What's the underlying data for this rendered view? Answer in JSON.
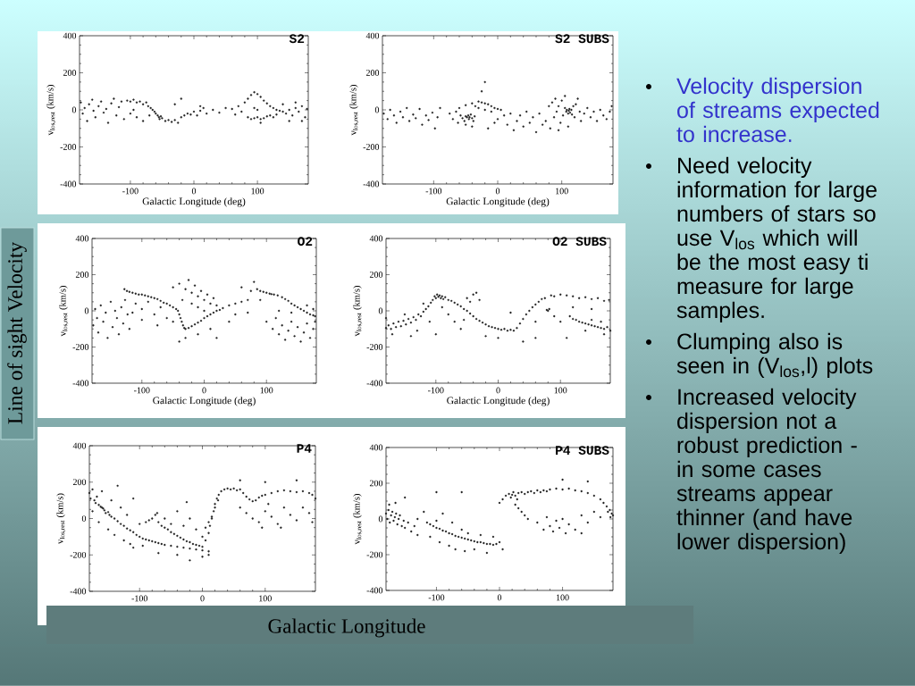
{
  "chart_data": [
    {
      "type": "scatter",
      "title": "S2",
      "xlabel": "Galactic Longitude (deg)",
      "ylabel": "v$_{los,rest}$ (km/s)",
      "color": "#222222",
      "marker": "circle",
      "xlim": [
        -180,
        180
      ],
      "ylim": [
        -400,
        400
      ],
      "xticks": [
        -100,
        0,
        100
      ],
      "yticks": [
        -400,
        -200,
        0,
        200,
        400
      ],
      "x": [
        -178,
        -175,
        -172,
        -168,
        -165,
        -160,
        -158,
        -155,
        -150,
        -146,
        -142,
        -138,
        -135,
        -130,
        -126,
        -122,
        -118,
        -114,
        -110,
        -105,
        -100,
        -95,
        -90,
        -85,
        -80,
        -75,
        -72,
        -68,
        -65,
        -62,
        -60,
        -57,
        -55,
        -54,
        -52,
        -50,
        -100,
        -90,
        -80,
        -70,
        -95,
        -45,
        -40,
        -35,
        -30,
        -25,
        -20,
        -15,
        -10,
        -5,
        0,
        5,
        10,
        15,
        20,
        30,
        40,
        50,
        60,
        65,
        70,
        75,
        -30,
        -20,
        10,
        80,
        85,
        90,
        95,
        100,
        105,
        110,
        115,
        120,
        125,
        130,
        135,
        85,
        90,
        95,
        100,
        105,
        110,
        115,
        120,
        125,
        130,
        140,
        145,
        150,
        155,
        160,
        165,
        170,
        175,
        178,
        95,
        100,
        140,
        160,
        150,
        170,
        105
      ],
      "values": [
        40,
        -20,
        10,
        -60,
        30,
        55,
        -5,
        -40,
        20,
        45,
        -15,
        5,
        -70,
        35,
        60,
        -30,
        15,
        45,
        -50,
        50,
        45,
        55,
        40,
        45,
        30,
        40,
        20,
        10,
        0,
        -10,
        -20,
        -30,
        -40,
        -50,
        -35,
        -45,
        -20,
        -40,
        -60,
        -30,
        0,
        -60,
        -55,
        -65,
        -55,
        -70,
        -40,
        -30,
        -20,
        -25,
        -10,
        -30,
        -5,
        10,
        -20,
        0,
        -15,
        10,
        5,
        -25,
        20,
        -10,
        30,
        60,
        20,
        40,
        60,
        80,
        95,
        85,
        70,
        50,
        35,
        20,
        10,
        0,
        -5,
        -40,
        -50,
        -45,
        -40,
        -50,
        -45,
        -35,
        -30,
        -40,
        -25,
        -10,
        -20,
        0,
        -30,
        10,
        -10,
        20,
        -40,
        5,
        10,
        0,
        30,
        40,
        -60,
        -60,
        -70
      ]
    },
    {
      "type": "scatter",
      "title": "S2 SUBS",
      "xlabel": "Galactic Longitude (deg)",
      "ylabel": "v$_{los,rest}$ (km/s)",
      "color": "#222222",
      "marker": "circle",
      "xlim": [
        -180,
        180
      ],
      "ylim": [
        -400,
        400
      ],
      "xticks": [
        -100,
        0,
        100
      ],
      "yticks": [
        -400,
        -200,
        0,
        200,
        400
      ],
      "x": [
        -178,
        -172,
        -168,
        -162,
        -158,
        -152,
        -148,
        -142,
        -138,
        -132,
        -128,
        -122,
        -118,
        -112,
        -108,
        -102,
        -98,
        -94,
        -90,
        -75,
        -70,
        -65,
        -62,
        -58,
        -55,
        -52,
        -50,
        -48,
        -46,
        -45,
        -44,
        -42,
        -40,
        -38,
        -36,
        -50,
        -40,
        -60,
        -50,
        -40,
        -30,
        -25,
        -20,
        -15,
        -10,
        -5,
        0,
        5,
        -35,
        -30,
        -20,
        -10,
        0,
        10,
        15,
        20,
        25,
        30,
        35,
        40,
        45,
        50,
        55,
        60,
        65,
        70,
        -20,
        -25,
        -15,
        -5,
        75,
        80,
        82,
        85,
        88,
        90,
        92,
        95,
        98,
        100,
        102,
        105,
        107,
        108,
        110,
        111,
        112,
        113,
        115,
        116,
        118,
        120,
        122,
        125,
        128,
        130,
        95,
        110,
        105,
        135,
        140,
        145,
        150,
        155,
        160,
        165,
        170,
        175,
        178
      ],
      "values": [
        -20,
        -50,
        0,
        -30,
        -70,
        -10,
        -40,
        10,
        -60,
        -25,
        -45,
        5,
        -80,
        -30,
        -55,
        -15,
        -100,
        -40,
        10,
        -20,
        -50,
        -10,
        -70,
        -30,
        -45,
        -60,
        -35,
        -40,
        -30,
        -50,
        -40,
        -25,
        -45,
        -60,
        -35,
        -80,
        -90,
        10,
        25,
        35,
        45,
        40,
        35,
        30,
        20,
        10,
        5,
        0,
        20,
        10,
        0,
        -10,
        -50,
        -30,
        -80,
        -20,
        -110,
        -60,
        -30,
        -90,
        -10,
        -70,
        -40,
        -120,
        -20,
        -80,
        150,
        100,
        -100,
        -70,
        -60,
        20,
        -100,
        40,
        -40,
        60,
        -10,
        20,
        -70,
        50,
        -30,
        10,
        -10,
        0,
        -20,
        -5,
        5,
        -15,
        0,
        -25,
        20,
        -40,
        30,
        60,
        -10,
        -60,
        -110,
        -90,
        75,
        -20,
        10,
        -40,
        -10,
        -60,
        0,
        -30,
        -50,
        -10,
        20
      ]
    },
    {
      "type": "scatter",
      "title": "O2",
      "xlabel": "Galactic Longitude (deg)",
      "ylabel": "v$_{los,rest}$ (km/s)",
      "color": "#222222",
      "marker": "circle",
      "xlim": [
        -180,
        180
      ],
      "ylim": [
        -400,
        400
      ],
      "xticks": [
        -100,
        0,
        100
      ],
      "yticks": [
        -400,
        -200,
        0,
        200,
        400
      ],
      "x": [
        -178,
        -175,
        -172,
        -170,
        -166,
        -162,
        -158,
        -155,
        -150,
        -147,
        -143,
        -140,
        -137,
        -133,
        -130,
        -127,
        -123,
        -120,
        -128,
        -124,
        -120,
        -115,
        -110,
        -105,
        -100,
        -95,
        -90,
        -85,
        -80,
        -75,
        -70,
        -65,
        -60,
        -55,
        -50,
        -45,
        -42,
        -40,
        -38,
        -36,
        -34,
        -32,
        -30,
        -110,
        -100,
        -90,
        -80,
        -70,
        -60,
        -50,
        -75,
        -100,
        -115,
        -25,
        -20,
        -15,
        -10,
        -5,
        0,
        5,
        10,
        15,
        20,
        25,
        30,
        40,
        50,
        60,
        70,
        -50,
        -40,
        -30,
        -25,
        -20,
        -15,
        -10,
        -5,
        0,
        5,
        10,
        15,
        20,
        -35,
        -20,
        -10,
        0,
        -30,
        -10,
        -40,
        10,
        20,
        75,
        85,
        90,
        95,
        100,
        105,
        108,
        112,
        118,
        125,
        130,
        135,
        140,
        145,
        150,
        155,
        160,
        165,
        170,
        175,
        178,
        100,
        110,
        115,
        120,
        125,
        130,
        135,
        140,
        145,
        150,
        155,
        160,
        165,
        170,
        175,
        178,
        120,
        140,
        165,
        175,
        80,
        60,
        90,
        50,
        40,
        70
      ],
      "values": [
        -80,
        10,
        -40,
        -120,
        30,
        -60,
        -10,
        -150,
        50,
        -90,
        0,
        -40,
        -130,
        20,
        -70,
        60,
        -20,
        -100,
        120,
        110,
        105,
        100,
        95,
        90,
        90,
        85,
        80,
        75,
        70,
        65,
        55,
        45,
        40,
        30,
        20,
        10,
        0,
        -20,
        -40,
        -60,
        -80,
        -95,
        -100,
        40,
        10,
        50,
        -20,
        20,
        -40,
        -60,
        -80,
        -50,
        -10,
        -95,
        -85,
        -75,
        -65,
        -55,
        -40,
        -30,
        -20,
        -10,
        0,
        5,
        15,
        30,
        40,
        50,
        60,
        130,
        150,
        120,
        170,
        100,
        140,
        80,
        110,
        60,
        90,
        40,
        70,
        30,
        60,
        40,
        20,
        0,
        -150,
        -130,
        -170,
        -100,
        -150,
        110,
        120,
        110,
        105,
        100,
        95,
        92,
        90,
        85,
        75,
        65,
        55,
        40,
        30,
        20,
        10,
        0,
        -10,
        -20,
        -25,
        -30,
        -60,
        -100,
        -40,
        -130,
        -80,
        -160,
        -110,
        -60,
        -140,
        -90,
        -170,
        -120,
        -70,
        -150,
        -100,
        -60,
        0,
        -10,
        30,
        10,
        160,
        130,
        60,
        -20,
        -60,
        -10
      ]
    },
    {
      "type": "scatter",
      "title": "O2 SUBS",
      "xlabel": "Galactic Longitude (deg)",
      "ylabel": "v$_{los,rest}$ (km/s)",
      "color": "#222222",
      "marker": "circle",
      "xlim": [
        -180,
        180
      ],
      "ylim": [
        -400,
        400
      ],
      "xticks": [
        -100,
        0,
        100
      ],
      "yticks": [
        -400,
        -200,
        0,
        200,
        400
      ],
      "x": [
        -180,
        -176,
        -172,
        -168,
        -164,
        -160,
        -156,
        -152,
        -148,
        -144,
        -140,
        -136,
        -132,
        -128,
        -124,
        -120,
        -116,
        -112,
        -108,
        -105,
        -102,
        -100,
        -98,
        -96,
        -94,
        -92,
        -90,
        -88,
        -85,
        -80,
        -75,
        -70,
        -65,
        -60,
        -55,
        -50,
        -45,
        -40,
        -35,
        -30,
        -25,
        -20,
        -15,
        -10,
        -5,
        0,
        5,
        10,
        15,
        20,
        25,
        30,
        -170,
        -150,
        -130,
        -120,
        -110,
        -90,
        -80,
        -70,
        -60,
        -50,
        -40,
        -35,
        -30,
        -45,
        -55,
        -100,
        -20,
        0,
        -140,
        35,
        40,
        45,
        50,
        55,
        60,
        65,
        70,
        75,
        78,
        80,
        82,
        85,
        90,
        100,
        110,
        120,
        130,
        140,
        150,
        160,
        170,
        178,
        115,
        120,
        125,
        130,
        135,
        140,
        145,
        150,
        155,
        160,
        165,
        170,
        175,
        180,
        150,
        165,
        140,
        170,
        40,
        60,
        100,
        110,
        20,
        60,
        90,
        120,
        150,
        -180
      ],
      "values": [
        -95,
        -80,
        -100,
        -70,
        -90,
        -60,
        -85,
        -55,
        -75,
        -45,
        -65,
        -35,
        -50,
        -20,
        -30,
        -5,
        10,
        25,
        45,
        60,
        80,
        70,
        90,
        78,
        85,
        70,
        80,
        65,
        75,
        60,
        55,
        45,
        35,
        25,
        10,
        0,
        -15,
        -30,
        -45,
        -55,
        -65,
        -75,
        -85,
        -90,
        -95,
        -100,
        -105,
        -100,
        -110,
        -105,
        -110,
        -95,
        -130,
        -20,
        -110,
        40,
        -60,
        20,
        -20,
        -60,
        -100,
        70,
        90,
        100,
        60,
        50,
        -50,
        -130,
        -140,
        -150,
        -140,
        -70,
        -45,
        -20,
        0,
        20,
        35,
        50,
        65,
        70,
        5,
        0,
        10,
        85,
        80,
        90,
        85,
        80,
        70,
        75,
        65,
        70,
        55,
        60,
        -30,
        -45,
        -50,
        -60,
        -65,
        -70,
        -75,
        -80,
        -85,
        -90,
        -95,
        -100,
        -90,
        -110,
        -50,
        -60,
        -110,
        -130,
        -170,
        -150,
        -60,
        -150,
        -10,
        -60,
        -30,
        20,
        10,
        -40
      ]
    },
    {
      "type": "scatter",
      "title": "P4",
      "ylabel": "v$_{los,rest}$ (km/s)",
      "color": "#222222",
      "marker": "circle",
      "xlim": [
        -180,
        180
      ],
      "ylim": [
        -400,
        400
      ],
      "xticks": [
        -100,
        0,
        100
      ],
      "yticks": [
        -400,
        -200,
        0,
        200,
        400
      ],
      "x": [
        -180,
        -178,
        -175,
        -172,
        -170,
        -168,
        -165,
        -162,
        -160,
        -158,
        -156,
        -154,
        -150,
        -148,
        -145,
        -140,
        -135,
        -130,
        -125,
        -120,
        -115,
        -110,
        -105,
        -100,
        -95,
        -90,
        -85,
        -80,
        -75,
        -70,
        -65,
        -60,
        -50,
        -40,
        -30,
        -20,
        -10,
        0,
        10,
        -175,
        -165,
        -160,
        -150,
        -145,
        -140,
        -135,
        -130,
        -125,
        -120,
        -115,
        -110,
        -100,
        -95,
        -90,
        -110,
        -70,
        -40,
        -20,
        0,
        10,
        -85,
        -80,
        -75,
        -72,
        -70,
        -65,
        -60,
        -55,
        -50,
        -45,
        -40,
        -35,
        -30,
        -25,
        -20,
        -15,
        -10,
        -5,
        0,
        -60,
        -50,
        -30,
        -20,
        -10,
        0,
        -40,
        -25,
        5,
        10,
        15,
        20,
        25,
        5,
        10,
        12,
        15,
        18,
        20,
        23,
        26,
        30,
        35,
        40,
        45,
        50,
        55,
        60,
        65,
        70,
        75,
        80,
        85,
        90,
        95,
        100,
        110,
        120,
        130,
        140,
        150,
        160,
        170,
        175,
        180,
        60,
        70,
        80,
        90,
        100,
        110,
        120,
        130,
        140,
        150,
        160,
        170,
        175,
        95,
        125,
        105,
        60,
        100,
        150
      ],
      "values": [
        140,
        110,
        160,
        100,
        85,
        120,
        75,
        65,
        60,
        55,
        45,
        30,
        35,
        20,
        10,
        0,
        -15,
        -30,
        -40,
        -55,
        -65,
        -75,
        -90,
        -100,
        -110,
        -115,
        -120,
        -125,
        -130,
        -135,
        -140,
        -145,
        -150,
        -155,
        -160,
        -165,
        -170,
        -175,
        -180,
        40,
        -20,
        150,
        -60,
        100,
        -90,
        180,
        60,
        -120,
        20,
        -140,
        110,
        -30,
        -150,
        -20,
        -160,
        -190,
        -200,
        -230,
        -210,
        -200,
        -10,
        0,
        20,
        30,
        -20,
        -40,
        -50,
        -60,
        -75,
        -85,
        -95,
        -105,
        -115,
        -125,
        -130,
        -140,
        -145,
        -150,
        -155,
        0,
        -30,
        -40,
        0,
        -60,
        -100,
        40,
        90,
        -50,
        -20,
        10,
        60,
        100,
        -120,
        -80,
        -40,
        0,
        40,
        80,
        110,
        130,
        150,
        160,
        165,
        160,
        165,
        155,
        160,
        140,
        120,
        105,
        95,
        100,
        115,
        125,
        130,
        140,
        150,
        155,
        150,
        145,
        150,
        140,
        130,
        110,
        60,
        30,
        0,
        -20,
        40,
        10,
        -30,
        60,
        20,
        -10,
        60,
        30,
        -20,
        -50,
        -50,
        80,
        210,
        200,
        210
      ]
    },
    {
      "type": "scatter",
      "title": "P4 SUBS",
      "ylabel": "v$_{los,rest}$ (km/s)",
      "color": "#222222",
      "marker": "circle",
      "xlim": [
        -180,
        180
      ],
      "ylim": [
        -400,
        400
      ],
      "xticks": [
        -100,
        0,
        100
      ],
      "yticks": [
        -400,
        -200,
        0,
        200,
        400
      ],
      "x": [
        -180,
        -178,
        -176,
        -174,
        -172,
        -170,
        -168,
        -166,
        -164,
        -162,
        -160,
        -158,
        -155,
        -152,
        -150,
        -145,
        -140,
        -135,
        -130,
        -175,
        -165,
        -150,
        -130,
        -120,
        -115,
        -110,
        -105,
        -100,
        -95,
        -90,
        -85,
        -80,
        -75,
        -70,
        -65,
        -60,
        -55,
        -50,
        -45,
        -40,
        -35,
        -30,
        -25,
        -20,
        -15,
        -10,
        -5,
        -110,
        -100,
        -95,
        -90,
        -80,
        -75,
        -70,
        -60,
        -55,
        -50,
        -40,
        -30,
        -20,
        -10,
        0,
        5,
        -60,
        -100,
        0,
        5,
        10,
        15,
        18,
        20,
        22,
        25,
        28,
        30,
        35,
        40,
        45,
        50,
        55,
        60,
        65,
        70,
        75,
        80,
        90,
        100,
        110,
        120,
        130,
        140,
        150,
        160,
        165,
        170,
        172,
        175,
        178,
        180,
        176,
        25,
        30,
        35,
        40,
        45,
        60,
        70,
        75,
        80,
        85,
        90,
        95,
        100,
        105,
        110,
        120,
        130,
        140,
        150,
        160,
        130,
        100,
        140
      ],
      "values": [
        30,
        0,
        50,
        -20,
        20,
        40,
        -10,
        10,
        30,
        -30,
        0,
        20,
        -40,
        -10,
        -50,
        -20,
        -70,
        -40,
        -90,
        80,
        90,
        120,
        0,
        40,
        -20,
        -30,
        -40,
        -50,
        -55,
        -65,
        -70,
        -80,
        -85,
        -95,
        -100,
        -105,
        -110,
        -115,
        -120,
        -125,
        -130,
        -130,
        -135,
        -140,
        -140,
        -145,
        -140,
        -100,
        -10,
        -130,
        30,
        -150,
        -20,
        -170,
        -60,
        -180,
        -80,
        -170,
        -90,
        -190,
        -100,
        -130,
        -170,
        150,
        150,
        90,
        110,
        130,
        140,
        120,
        135,
        150,
        130,
        110,
        145,
        150,
        140,
        150,
        155,
        145,
        160,
        150,
        160,
        155,
        165,
        170,
        165,
        170,
        160,
        155,
        145,
        130,
        110,
        90,
        70,
        40,
        50,
        30,
        20,
        10,
        80,
        60,
        40,
        20,
        0,
        -20,
        -60,
        10,
        -40,
        -70,
        -10,
        -50,
        0,
        -80,
        -30,
        -60,
        20,
        -20,
        40,
        10,
        -80,
        220,
        210
      ]
    },
    {
      "type": "other",
      "annotations": [
        "Velocity dispersion of streams expected to increase.",
        "Need velocity information for large numbers of stars so use V$_{los}$ which will be the most easy ti measure for large samples.",
        "Clumping also is seen in (V$_{los}$,l) plots",
        "Increased velocity dispersion not a robust prediction - in some cases streams appear thinner (and have lower dispersion)",
        "Line of sight Velocity",
        "Galactic Longitude"
      ]
    }
  ]
}
